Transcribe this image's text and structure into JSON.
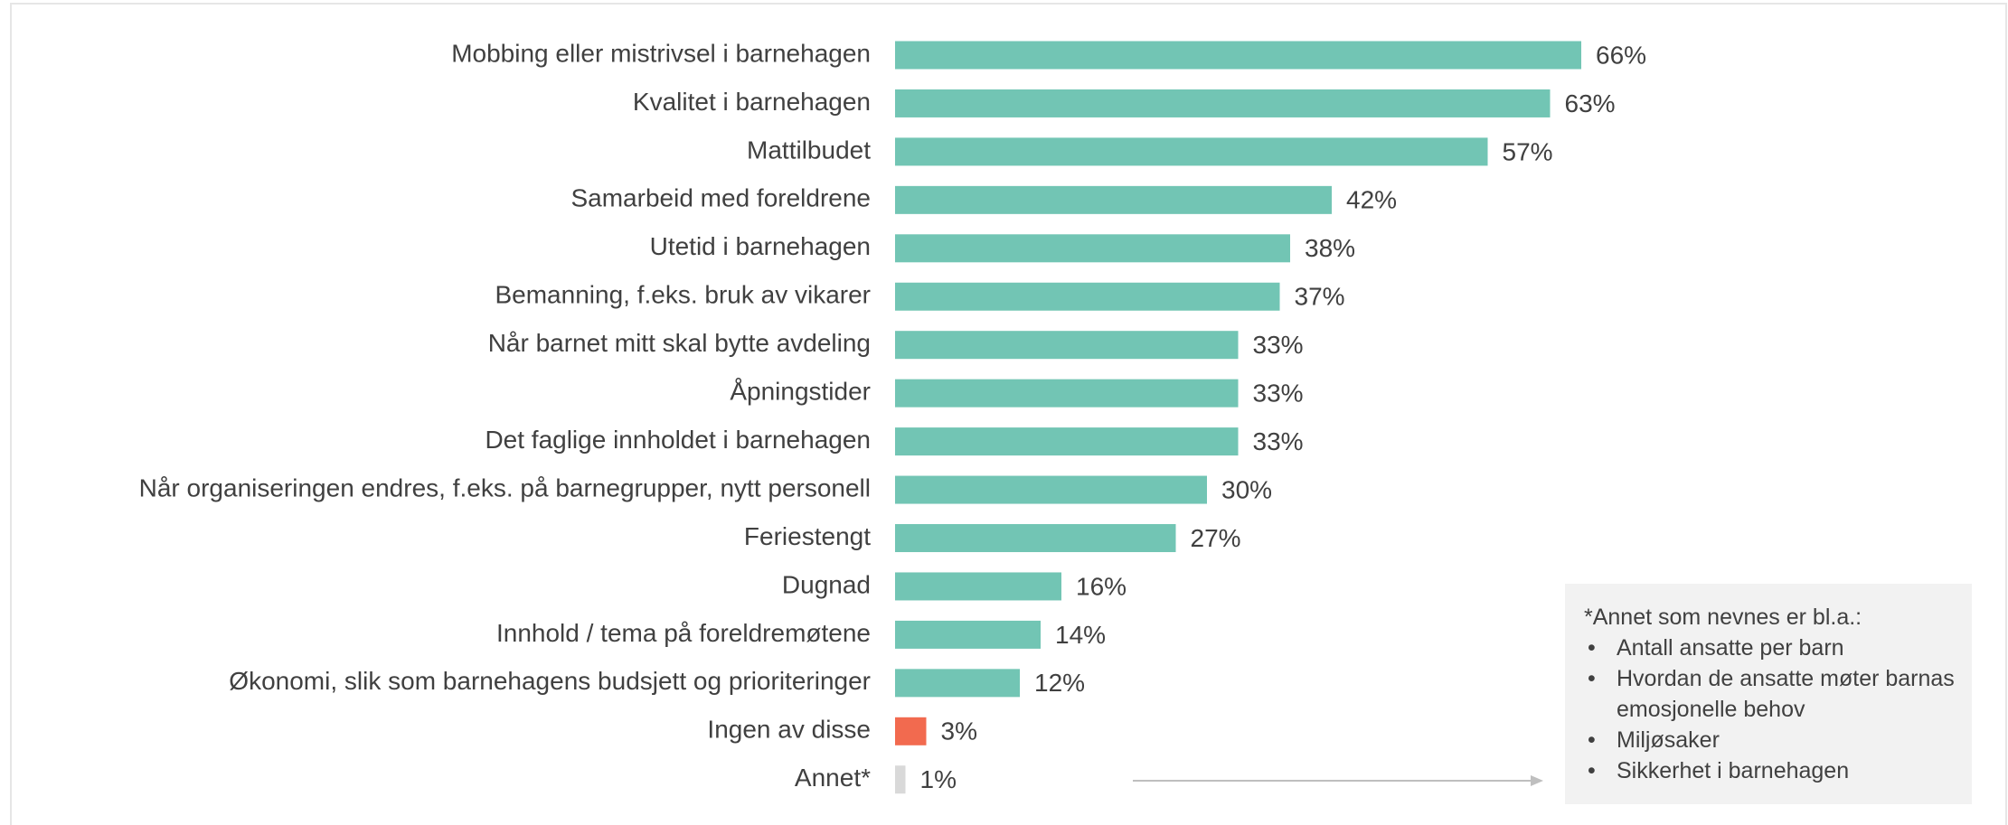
{
  "chart_data": {
    "type": "bar",
    "orientation": "horizontal",
    "categories": [
      "Mobbing eller mistrivsel i barnehagen",
      "Kvalitet i barnehagen",
      "Mattilbudet",
      "Samarbeid med foreldrene",
      "Utetid i barnehagen",
      "Bemanning, f.eks. bruk av vikarer",
      "Når barnet mitt skal bytte avdeling",
      "Åpningstider",
      "Det faglige innholdet i barnehagen",
      "Når organiseringen endres, f.eks. på barnegrupper, nytt personell",
      "Feriestengt",
      "Dugnad",
      "Innhold / tema på foreldremøtene",
      "Økonomi, slik som barnehagens budsjett og prioriteringer",
      "Ingen av disse",
      "Annet*"
    ],
    "values": [
      66,
      63,
      57,
      42,
      38,
      37,
      33,
      33,
      33,
      30,
      27,
      16,
      14,
      12,
      3,
      1
    ],
    "value_labels": [
      "66%",
      "63%",
      "57%",
      "42%",
      "38%",
      "37%",
      "33%",
      "33%",
      "33%",
      "30%",
      "27%",
      "16%",
      "14%",
      "12%",
      "3%",
      "1%"
    ],
    "colors": [
      "#72c5b4",
      "#72c5b4",
      "#72c5b4",
      "#72c5b4",
      "#72c5b4",
      "#72c5b4",
      "#72c5b4",
      "#72c5b4",
      "#72c5b4",
      "#72c5b4",
      "#72c5b4",
      "#72c5b4",
      "#72c5b4",
      "#72c5b4",
      "#f26a4f",
      "#d9d9d9"
    ]
  },
  "note": {
    "title": "*Annet som nevnes er bl.a.:",
    "items": [
      "Antall ansatte per barn",
      "Hvordan de ansatte møter barnas emosjonelle behov",
      "Miljøsaker",
      "Sikkerhet i barnehagen"
    ]
  }
}
